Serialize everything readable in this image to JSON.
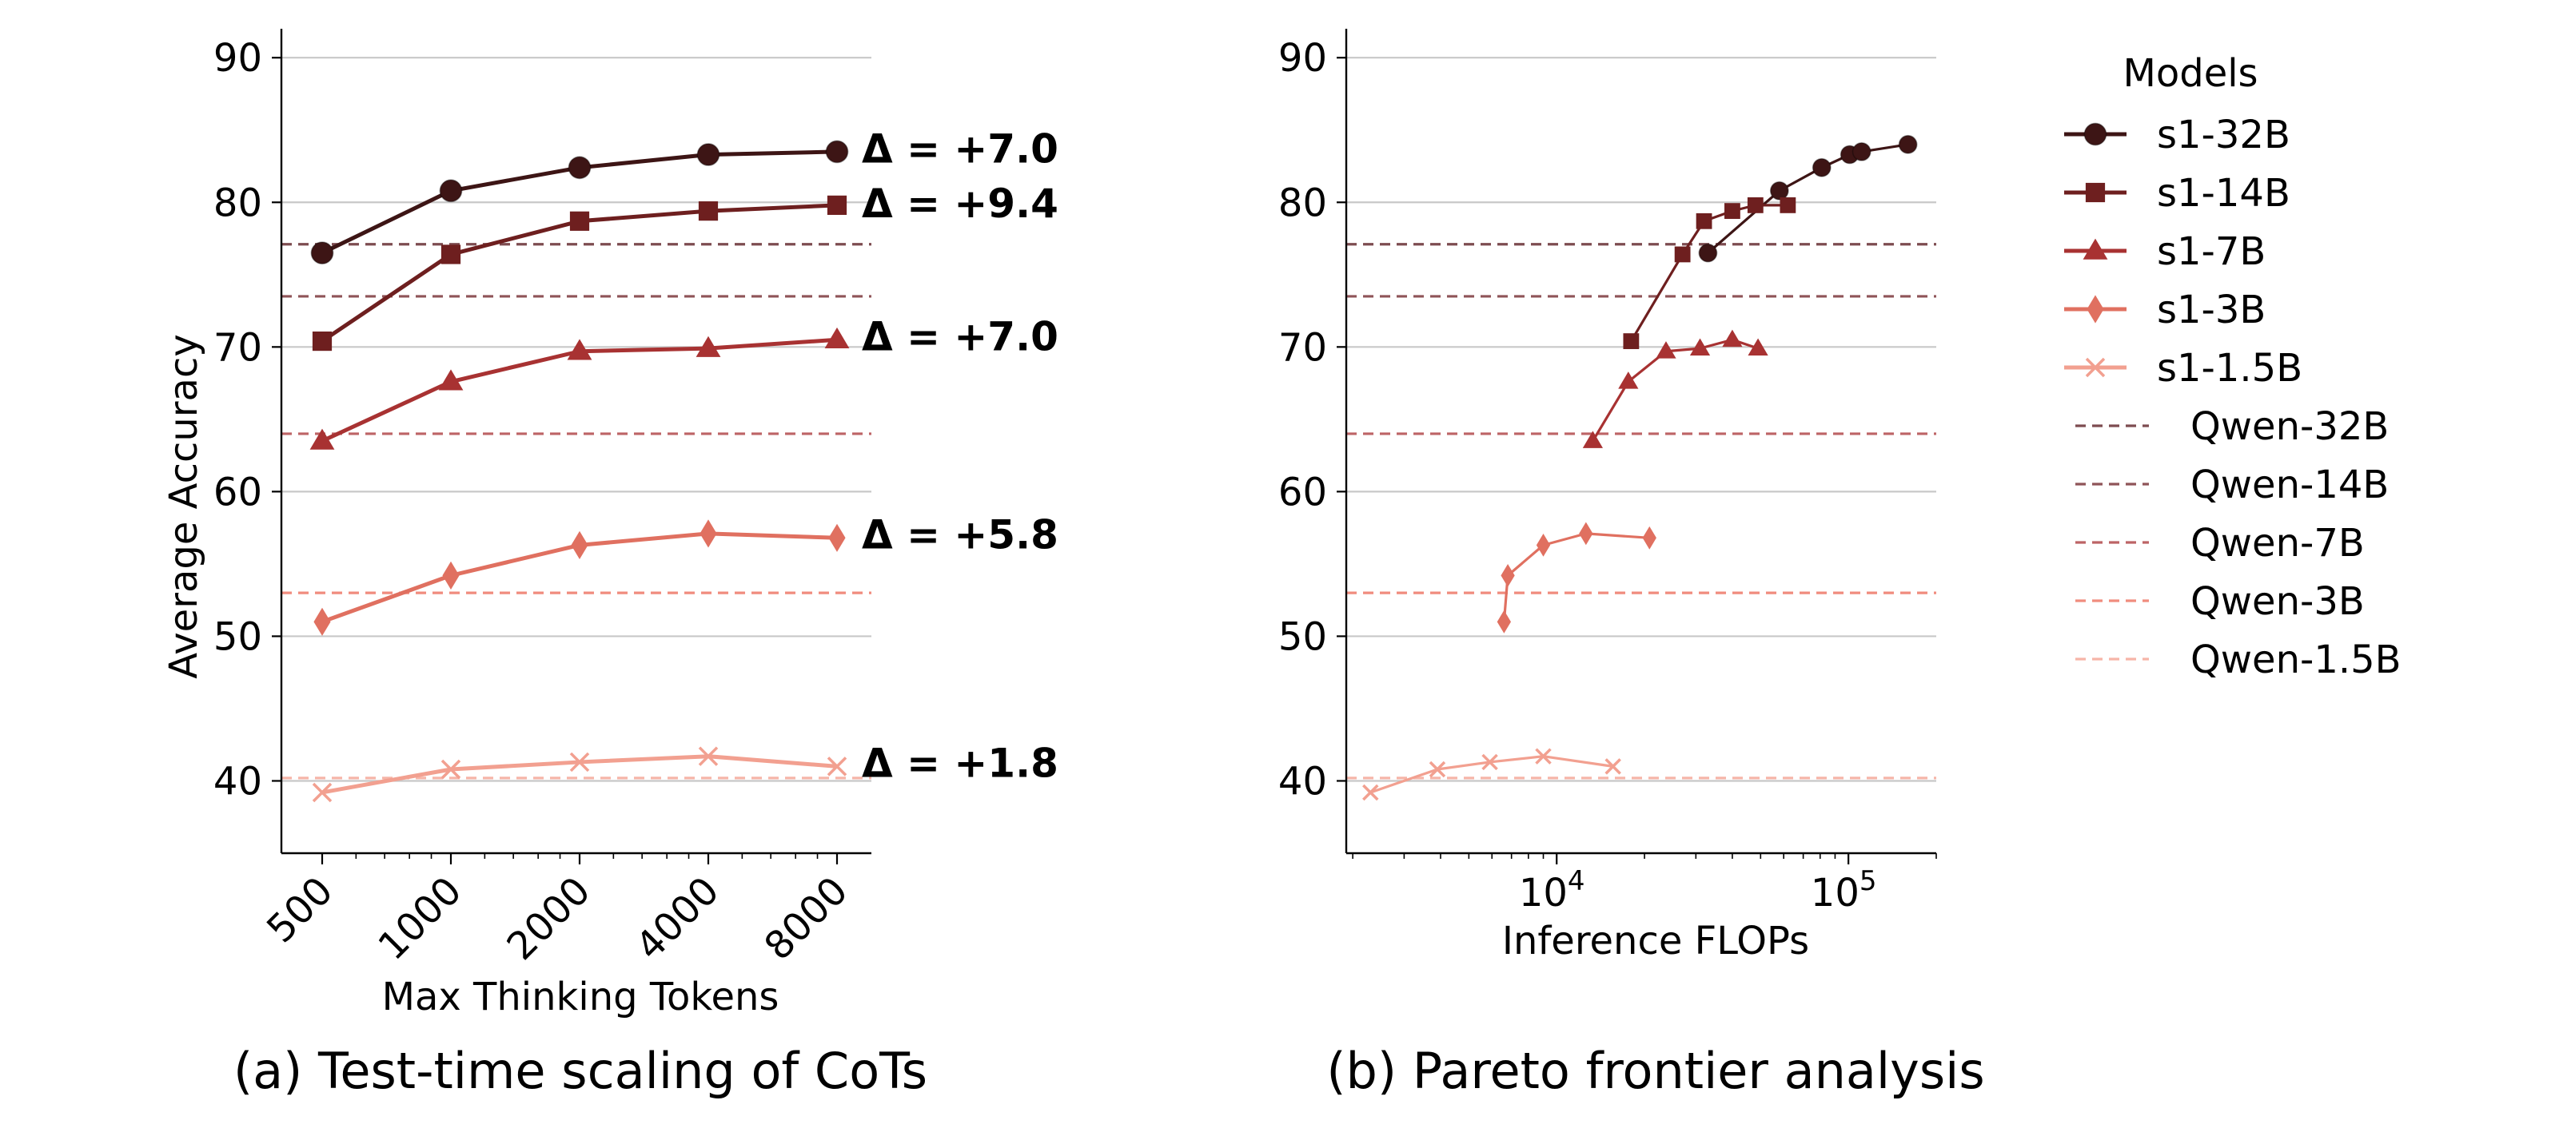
{
  "colors": {
    "s1-32B": "#3d1515",
    "s1-14B": "#6e1f1f",
    "s1-7B": "#a83232",
    "s1-3B": "#e07060",
    "s1-1.5B": "#f2a090",
    "Qwen-32B": "#7d4c50",
    "Qwen-14B": "#8f5458",
    "Qwen-7B": "#bd6466",
    "Qwen-3B": "#f08c7e",
    "Qwen-1.5B": "#f6b5a8",
    "grid": "#c8c8c8"
  },
  "legend": {
    "title": "Models",
    "entries": [
      {
        "label": "s1-32B",
        "style": "solid",
        "marker": "circle"
      },
      {
        "label": "s1-14B",
        "style": "solid",
        "marker": "square"
      },
      {
        "label": "s1-7B",
        "style": "solid",
        "marker": "triangle"
      },
      {
        "label": "s1-3B",
        "style": "solid",
        "marker": "diamond"
      },
      {
        "label": "s1-1.5B",
        "style": "solid",
        "marker": "x"
      },
      {
        "label": "Qwen-32B",
        "style": "dashed",
        "marker": "none"
      },
      {
        "label": "Qwen-14B",
        "style": "dashed",
        "marker": "none"
      },
      {
        "label": "Qwen-7B",
        "style": "dashed",
        "marker": "none"
      },
      {
        "label": "Qwen-3B",
        "style": "dashed",
        "marker": "none"
      },
      {
        "label": "Qwen-1.5B",
        "style": "dashed",
        "marker": "none"
      }
    ]
  },
  "chart_data": [
    {
      "type": "line",
      "caption": "(a) Test-time scaling of CoTs",
      "xlabel": "Max Thinking Tokens",
      "ylabel": "Average Accuracy",
      "x_scale": "log2",
      "x": [
        500,
        1000,
        2000,
        4000,
        8000
      ],
      "x_tick_labels": [
        "500",
        "1000",
        "2000",
        "4000",
        "8000"
      ],
      "ylim": [
        35,
        92
      ],
      "y_ticks": [
        40,
        50,
        60,
        70,
        80,
        90
      ],
      "grid": "horizontal",
      "series": [
        {
          "name": "s1-32B",
          "values": [
            76.5,
            80.8,
            82.4,
            83.3,
            83.5
          ]
        },
        {
          "name": "s1-14B",
          "values": [
            70.4,
            76.4,
            78.7,
            79.4,
            79.8
          ]
        },
        {
          "name": "s1-7B",
          "values": [
            63.5,
            67.6,
            69.7,
            69.9,
            70.5
          ]
        },
        {
          "name": "s1-3B",
          "values": [
            51.0,
            54.2,
            56.3,
            57.1,
            56.8
          ]
        },
        {
          "name": "s1-1.5B",
          "values": [
            39.2,
            40.8,
            41.3,
            41.7,
            41.0
          ]
        }
      ],
      "baselines": [
        {
          "name": "Qwen-32B",
          "value": 77.1
        },
        {
          "name": "Qwen-14B",
          "value": 73.5
        },
        {
          "name": "Qwen-7B",
          "value": 64.0
        },
        {
          "name": "Qwen-3B",
          "value": 53.0
        },
        {
          "name": "Qwen-1.5B",
          "value": 40.2
        }
      ],
      "annotations": [
        {
          "series": "s1-32B",
          "text": "Δ = +7.0",
          "y": 83.7
        },
        {
          "series": "s1-14B",
          "text": "Δ = +9.4",
          "y": 79.9
        },
        {
          "series": "s1-7B",
          "text": "Δ = +7.0",
          "y": 70.7
        },
        {
          "series": "s1-3B",
          "text": "Δ = +5.8",
          "y": 57.0
        },
        {
          "series": "s1-1.5B",
          "text": "Δ = +1.8",
          "y": 41.2
        }
      ]
    },
    {
      "type": "line",
      "caption": "(b) Pareto frontier analysis",
      "xlabel": "Inference FLOPs",
      "ylabel": "",
      "x_scale": "log10",
      "xlim": [
        1900,
        200000
      ],
      "x_ticks": [
        10000,
        100000
      ],
      "x_tick_labels": [
        {
          "base": "10",
          "exp": "4"
        },
        {
          "base": "10",
          "exp": "5"
        }
      ],
      "ylim": [
        35,
        92
      ],
      "y_ticks": [
        40,
        50,
        60,
        70,
        80,
        90
      ],
      "grid": "horizontal",
      "series": [
        {
          "name": "s1-32B",
          "points": [
            [
              33000,
              76.5
            ],
            [
              58000,
              80.8
            ],
            [
              81000,
              82.4
            ],
            [
              101000,
              83.3
            ],
            [
              111000,
              83.5
            ],
            [
              160000,
              84.0
            ]
          ]
        },
        {
          "name": "s1-14B",
          "points": [
            [
              18000,
              70.4
            ],
            [
              27000,
              76.4
            ],
            [
              32000,
              78.7
            ],
            [
              40000,
              79.4
            ],
            [
              48000,
              79.8
            ],
            [
              62000,
              79.8
            ]
          ]
        },
        {
          "name": "s1-7B",
          "points": [
            [
              13300,
              63.5
            ],
            [
              17600,
              67.6
            ],
            [
              23700,
              69.7
            ],
            [
              31000,
              69.9
            ],
            [
              40000,
              70.5
            ],
            [
              49000,
              69.9
            ]
          ]
        },
        {
          "name": "s1-3B",
          "points": [
            [
              6600,
              51.0
            ],
            [
              6800,
              54.2
            ],
            [
              9000,
              56.3
            ],
            [
              12600,
              57.1
            ],
            [
              20800,
              56.8
            ]
          ]
        },
        {
          "name": "s1-1.5B",
          "points": [
            [
              2300,
              39.2
            ],
            [
              3900,
              40.8
            ],
            [
              5900,
              41.3
            ],
            [
              9000,
              41.7
            ],
            [
              15600,
              41.0
            ]
          ]
        }
      ],
      "baselines": [
        {
          "name": "Qwen-32B",
          "value": 77.1
        },
        {
          "name": "Qwen-14B",
          "value": 73.5
        },
        {
          "name": "Qwen-7B",
          "value": 64.0
        },
        {
          "name": "Qwen-3B",
          "value": 53.0
        },
        {
          "name": "Qwen-1.5B",
          "value": 40.2
        }
      ]
    }
  ]
}
